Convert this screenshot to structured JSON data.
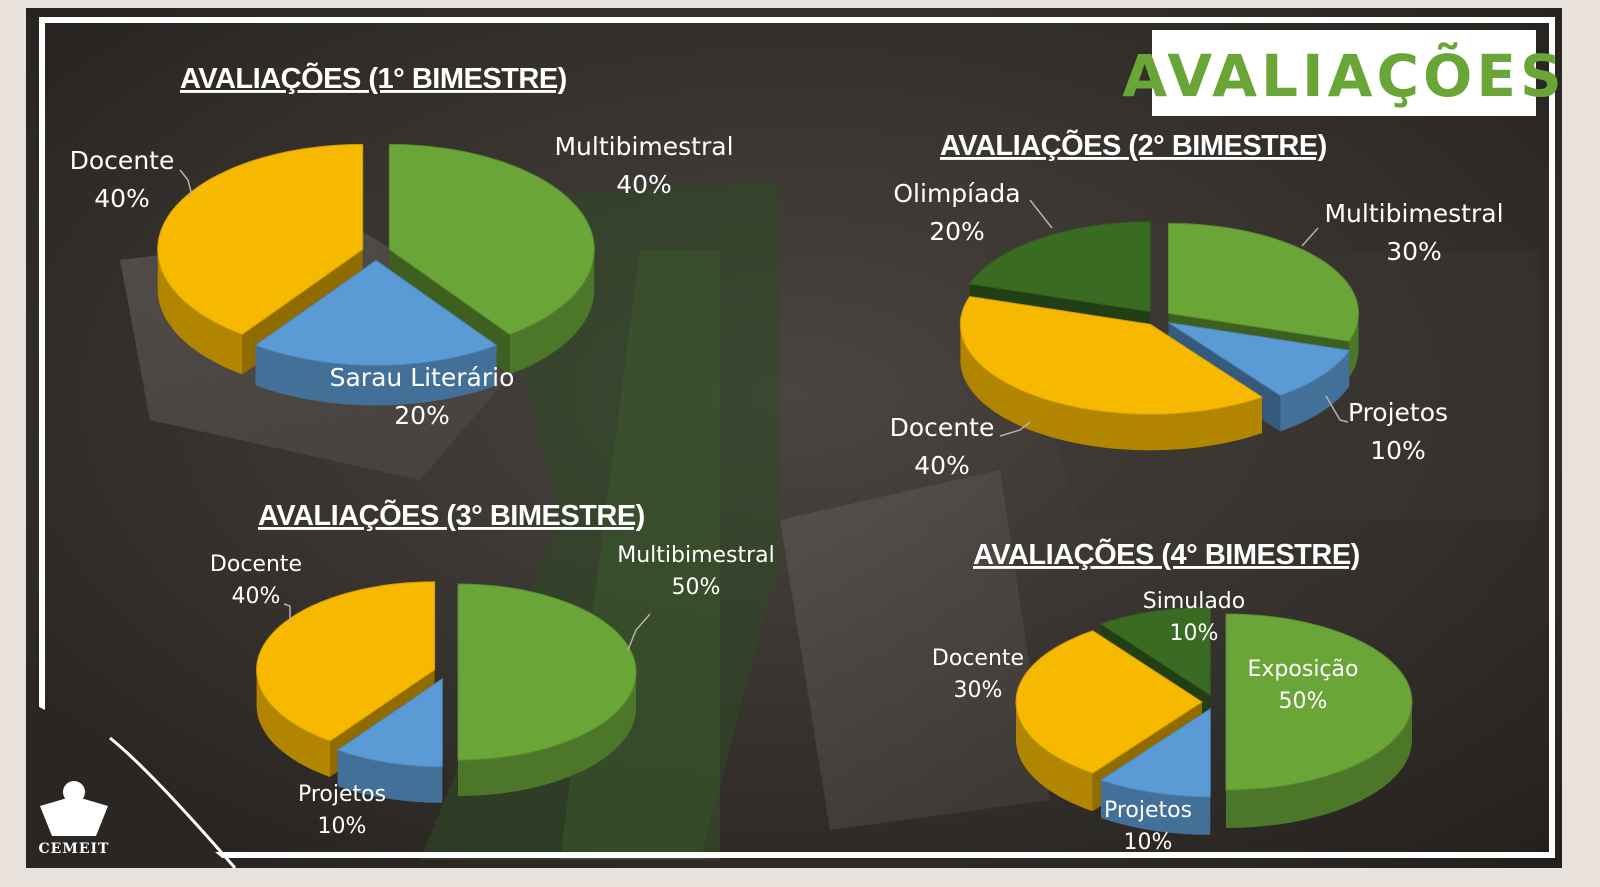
{
  "banner": {
    "title": "AVALIAÇÕES"
  },
  "logo": {
    "text": "CEMEIT"
  },
  "colors": {
    "multibimestral": "#6aa537",
    "docente": "#f7b900",
    "azul": "#5b9bd5",
    "verde_escuro": "#3a6b22"
  },
  "chart_data": [
    {
      "type": "pie",
      "title": "AVALIAÇÕES (1° BIMESTRE)",
      "slices": [
        {
          "label": "Multibimestral",
          "value": 40,
          "value_text": "40%",
          "color": "#6aa537"
        },
        {
          "label": "Sarau Literário",
          "value": 20,
          "value_text": "20%",
          "color": "#5b9bd5"
        },
        {
          "label": "Docente",
          "value": 40,
          "value_text": "40%",
          "color": "#f7b900"
        }
      ]
    },
    {
      "type": "pie",
      "title": "AVALIAÇÕES (2° BIMESTRE)",
      "slices": [
        {
          "label": "Multibimestral",
          "value": 30,
          "value_text": "30%",
          "color": "#6aa537"
        },
        {
          "label": "Projetos",
          "value": 10,
          "value_text": "10%",
          "color": "#5b9bd5"
        },
        {
          "label": "Docente",
          "value": 40,
          "value_text": "40%",
          "color": "#f7b900"
        },
        {
          "label": "Olimpíada",
          "value": 20,
          "value_text": "20%",
          "color": "#3a6b22"
        }
      ]
    },
    {
      "type": "pie",
      "title": "AVALIAÇÕES (3° BIMESTRE)",
      "slices": [
        {
          "label": "Multibimestral",
          "value": 50,
          "value_text": "50%",
          "color": "#6aa537"
        },
        {
          "label": "Projetos",
          "value": 10,
          "value_text": "10%",
          "color": "#5b9bd5"
        },
        {
          "label": "Docente",
          "value": 40,
          "value_text": "40%",
          "color": "#f7b900"
        }
      ]
    },
    {
      "type": "pie",
      "title": "AVALIAÇÕES (4° BIMESTRE)",
      "slices": [
        {
          "label": "Exposição",
          "value": 50,
          "value_text": "50%",
          "color": "#6aa537"
        },
        {
          "label": "Projetos",
          "value": 10,
          "value_text": "10%",
          "color": "#5b9bd5"
        },
        {
          "label": "Docente",
          "value": 30,
          "value_text": "30%",
          "color": "#f7b900"
        },
        {
          "label": "Simulado",
          "value": 10,
          "value_text": "10%",
          "color": "#3a6b22"
        }
      ]
    }
  ]
}
